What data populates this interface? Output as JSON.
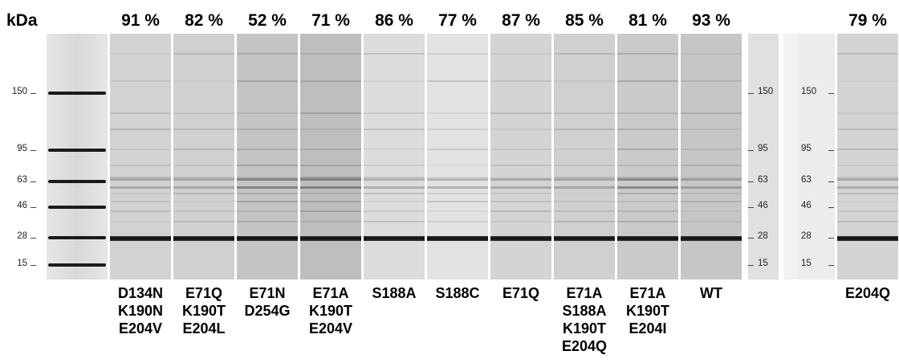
{
  "unit_label": "kDa",
  "markers": [
    "150",
    "95",
    "63",
    "46",
    "28",
    "15"
  ],
  "lanes": [
    {
      "percent": "91 %",
      "mutations": [
        "D134N",
        "K190N",
        "E204V"
      ],
      "tone": "#d2d2d2"
    },
    {
      "percent": "82 %",
      "mutations": [
        "E71Q",
        "K190T",
        "E204L"
      ],
      "tone": "#d0d0d0"
    },
    {
      "percent": "52 %",
      "mutations": [
        "E71N",
        "D254G"
      ],
      "tone": "#c4c4c4"
    },
    {
      "percent": "71 %",
      "mutations": [
        "E71A",
        "K190T",
        "E204V"
      ],
      "tone": "#bebebe"
    },
    {
      "percent": "86 %",
      "mutations": [
        "S188A"
      ],
      "tone": "#dcdcdc"
    },
    {
      "percent": "77 %",
      "mutations": [
        "S188C"
      ],
      "tone": "#e2e2e2"
    },
    {
      "percent": "87 %",
      "mutations": [
        "E71Q"
      ],
      "tone": "#d4d4d4"
    },
    {
      "percent": "85 %",
      "mutations": [
        "E71A",
        "S188A",
        "K190T",
        "E204Q"
      ],
      "tone": "#d0d0d0"
    },
    {
      "percent": "81 %",
      "mutations": [
        "E71A",
        "K190T",
        "E204I"
      ],
      "tone": "#cacaca"
    },
    {
      "percent": "93 %",
      "mutations": [
        "WT"
      ],
      "tone": "#c6c6c6"
    }
  ],
  "separate_lane": {
    "percent": "79 %",
    "mutations": [
      "E204Q"
    ],
    "tone": "#d4d4d4"
  }
}
